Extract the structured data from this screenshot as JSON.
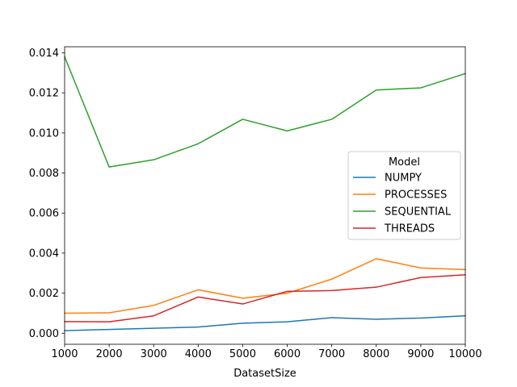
{
  "chart_data": {
    "type": "line",
    "title": "",
    "xlabel": "DatasetSize",
    "ylabel": "",
    "x": [
      1000,
      2000,
      3000,
      4000,
      5000,
      6000,
      7000,
      8000,
      9000,
      10000
    ],
    "xlim": [
      1000,
      10000
    ],
    "ylim": [
      -0.00055,
      0.0143
    ],
    "x_ticks": [
      1000,
      2000,
      3000,
      4000,
      5000,
      6000,
      7000,
      8000,
      9000,
      10000
    ],
    "x_tick_labels": [
      "1000",
      "2000",
      "3000",
      "4000",
      "5000",
      "6000",
      "7000",
      "8000",
      "9000",
      "10000"
    ],
    "y_ticks": [
      0,
      0.002,
      0.004,
      0.006,
      0.008,
      0.01,
      0.012,
      0.014
    ],
    "y_tick_labels": [
      "0.000",
      "0.002",
      "0.004",
      "0.006",
      "0.008",
      "0.010",
      "0.012",
      "0.014"
    ],
    "grid": false,
    "legend": {
      "title": "Model",
      "placement": "center-right"
    },
    "series": [
      {
        "name": "NUMPY",
        "color": "#1f77b4",
        "values": [
          0.00013,
          0.00019,
          0.00025,
          0.00031,
          0.0005,
          0.00057,
          0.00078,
          0.0007,
          0.00076,
          0.00087
        ]
      },
      {
        "name": "PROCESSES",
        "color": "#ff7f0e",
        "values": [
          0.001,
          0.00102,
          0.00139,
          0.00217,
          0.00175,
          0.002,
          0.0027,
          0.00372,
          0.00326,
          0.00318
        ]
      },
      {
        "name": "SEQUENTIAL",
        "color": "#2ca02c",
        "values": [
          0.0138,
          0.0083,
          0.00866,
          0.00946,
          0.01068,
          0.0101,
          0.01068,
          0.01214,
          0.01225,
          0.01296
        ]
      },
      {
        "name": "THREADS",
        "color": "#d62728",
        "values": [
          0.00058,
          0.00057,
          0.00087,
          0.00181,
          0.00146,
          0.00209,
          0.00213,
          0.0023,
          0.00278,
          0.00292
        ]
      }
    ]
  }
}
